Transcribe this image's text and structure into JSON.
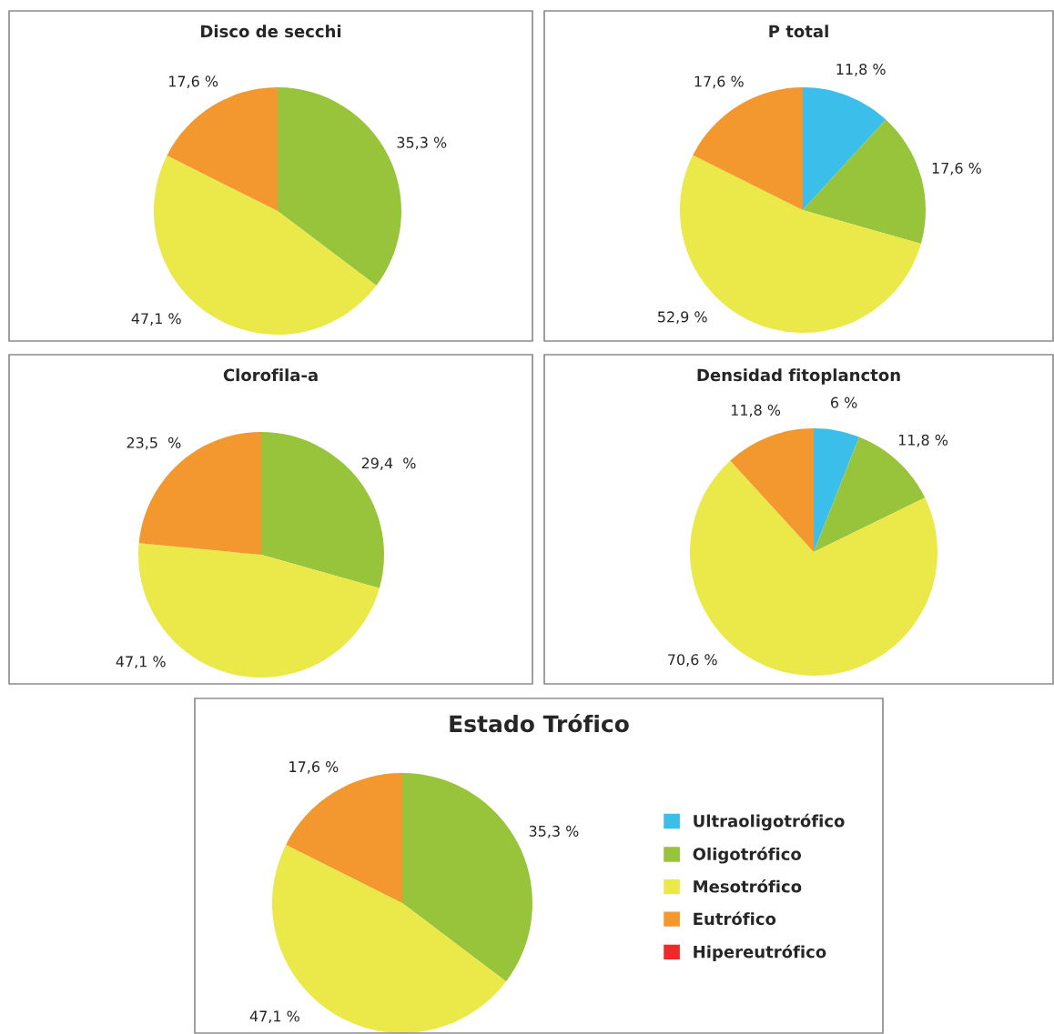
{
  "chart_data": [
    {
      "type": "pie",
      "title": "Disco de secchi",
      "categories": [
        null,
        null,
        null,
        null,
        null
      ],
      "values": [
        0,
        35.3,
        47.1,
        17.6,
        0
      ],
      "value_labels": [
        null,
        "35,3 %",
        "47,1 %",
        "17,6 %",
        null
      ],
      "colors": [
        "#3bbfea",
        "#98c43c",
        "#ebe84a",
        "#f3972f",
        "#ee2a2a"
      ]
    },
    {
      "type": "pie",
      "title": "P total",
      "categories": [
        null,
        null,
        null,
        null,
        null
      ],
      "values": [
        11.8,
        17.6,
        52.9,
        17.6,
        0
      ],
      "value_labels": [
        "11,8 %",
        "17,6 %",
        "52,9 %",
        "17,6 %",
        null
      ],
      "colors": [
        "#3bbfea",
        "#98c43c",
        "#ebe84a",
        "#f3972f",
        "#ee2a2a"
      ]
    },
    {
      "type": "pie",
      "title": "Clorofila-a",
      "categories": [
        null,
        null,
        null,
        null,
        null
      ],
      "values": [
        0,
        29.4,
        47.1,
        23.5,
        0
      ],
      "value_labels": [
        null,
        "29,4  %",
        "47,1 %",
        "23,5  %",
        null
      ],
      "colors": [
        "#3bbfea",
        "#98c43c",
        "#ebe84a",
        "#f3972f",
        "#ee2a2a"
      ]
    },
    {
      "type": "pie",
      "title": "Densidad fitoplancton",
      "categories": [
        null,
        null,
        null,
        null,
        null
      ],
      "values": [
        6,
        11.8,
        70.6,
        11.8,
        0
      ],
      "value_labels": [
        "6 %",
        "11,8 %",
        "70,6 %",
        "11,8 %",
        null
      ],
      "colors": [
        "#3bbfea",
        "#98c43c",
        "#ebe84a",
        "#f3972f",
        "#ee2a2a"
      ]
    },
    {
      "type": "pie",
      "title": "Estado Trófico",
      "categories": [
        "Ultraoligotrófico",
        "Oligotrófico",
        "Mesotrófico",
        "Eutrófico",
        "Hipereutrófico"
      ],
      "values": [
        0,
        35.3,
        47.1,
        17.6,
        0
      ],
      "value_labels": [
        null,
        "35,3 %",
        "47,1 %",
        "17,6 %",
        null
      ],
      "colors": [
        "#3bbfea",
        "#98c43c",
        "#ebe84a",
        "#f3972f",
        "#ee2a2a"
      ],
      "legend": "right"
    }
  ]
}
